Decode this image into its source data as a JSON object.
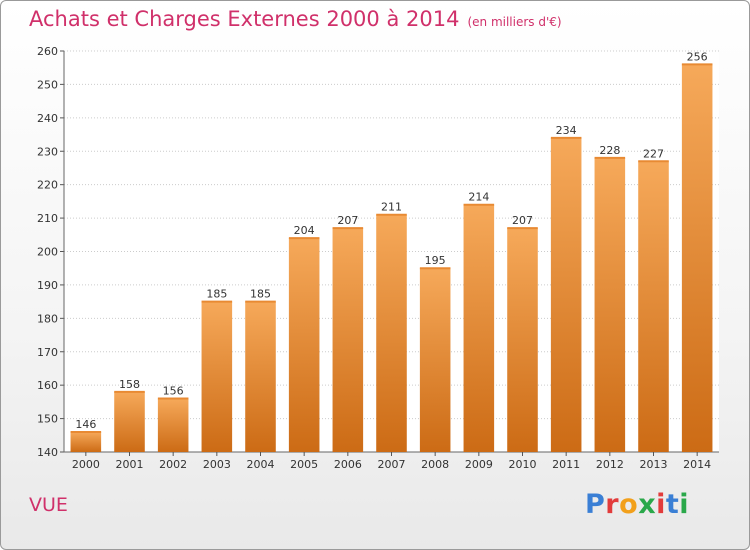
{
  "title": "Achats et Charges Externes 2000 à 2014",
  "unit": "(en milliers d'€)",
  "commune": "VUE",
  "logo": {
    "text": "Proxiti",
    "colors": [
      "#3a7fd5",
      "#e23b3b",
      "#f2a01b",
      "#2aa84a",
      "#e23b3b",
      "#3a7fd5",
      "#2aa84a"
    ]
  },
  "colors": {
    "title": "#d0306a",
    "bar_top": "#f6a95a",
    "bar_bottom": "#cc6b15",
    "grid": "#cccccc"
  },
  "chart_data": {
    "type": "bar",
    "title": "Achats et Charges Externes 2000 à 2014",
    "categories": [
      "2000",
      "2001",
      "2002",
      "2003",
      "2004",
      "2005",
      "2006",
      "2007",
      "2008",
      "2009",
      "2010",
      "2011",
      "2012",
      "2013",
      "2014"
    ],
    "values": [
      146,
      158,
      156,
      185,
      185,
      204,
      207,
      211,
      195,
      214,
      207,
      234,
      228,
      227,
      256
    ],
    "ylim": [
      140,
      260
    ],
    "yticks": [
      140,
      150,
      160,
      170,
      180,
      190,
      200,
      210,
      220,
      230,
      240,
      250,
      260
    ],
    "grid": true,
    "xlabel": "",
    "ylabel": ""
  }
}
